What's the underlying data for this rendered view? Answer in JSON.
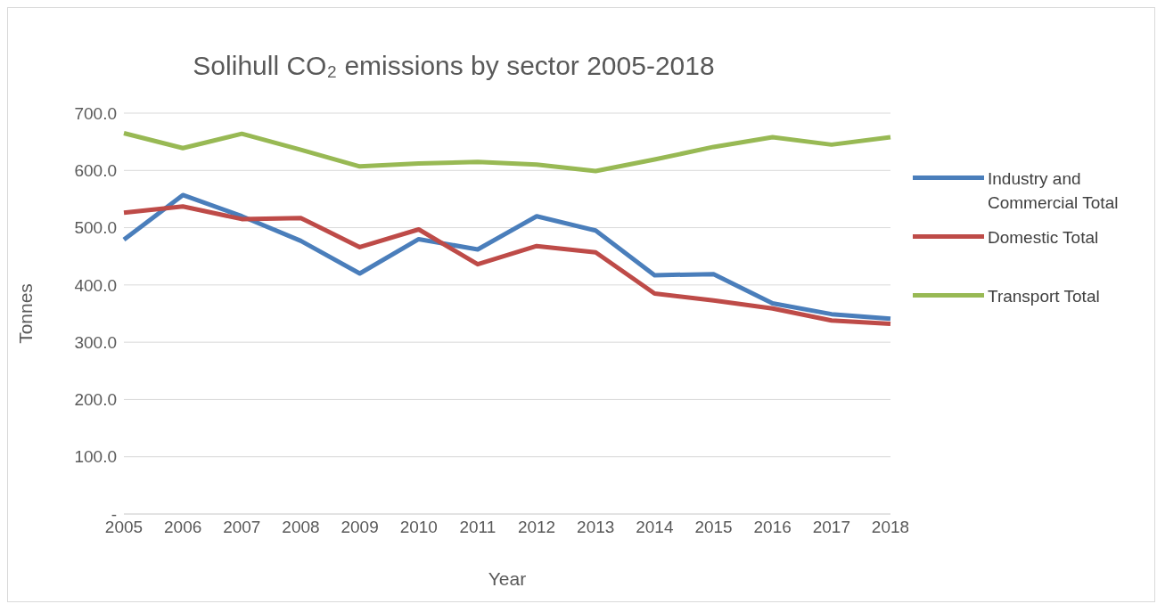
{
  "chart_data": {
    "type": "line",
    "title": "Solihull CO₂ emissions by sector 2005-2018",
    "xlabel": "Year",
    "ylabel": "Tonnes",
    "categories": [
      "2005",
      "2006",
      "2007",
      "2008",
      "2009",
      "2010",
      "2011",
      "2012",
      "2013",
      "2014",
      "2015",
      "2016",
      "2017",
      "2018"
    ],
    "series": [
      {
        "name": "Industry and Commercial Total",
        "color": "#4a7ebb",
        "values": [
          479,
          557,
          520,
          477,
          420,
          480,
          462,
          520,
          495,
          417,
          419,
          368,
          349,
          341
        ]
      },
      {
        "name": "Domestic Total",
        "color": "#be4b48",
        "values": [
          526,
          537,
          515,
          517,
          466,
          497,
          436,
          468,
          457,
          385,
          373,
          359,
          338,
          332
        ]
      },
      {
        "name": "Transport Total",
        "color": "#98b954",
        "values": [
          665,
          639,
          664,
          636,
          607,
          612,
          615,
          610,
          599,
          619,
          641,
          658,
          645,
          658
        ]
      }
    ],
    "ylim": [
      0,
      700
    ],
    "yticks": [
      {
        "value": 0,
        "label": "-"
      },
      {
        "value": 100,
        "label": "100.0"
      },
      {
        "value": 200,
        "label": "200.0"
      },
      {
        "value": 300,
        "label": "300.0"
      },
      {
        "value": 400,
        "label": "400.0"
      },
      {
        "value": 500,
        "label": "500.0"
      },
      {
        "value": 600,
        "label": "600.0"
      },
      {
        "value": 700,
        "label": "700.0"
      }
    ],
    "grid": "y",
    "legend": "right",
    "marker": "none",
    "line_style": "solid"
  }
}
